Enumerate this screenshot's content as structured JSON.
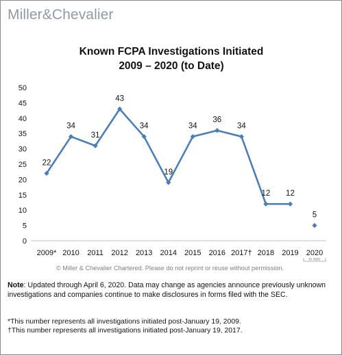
{
  "brand": {
    "part1": "Miller",
    "amp": "&",
    "part2": "Chevalier"
  },
  "chart_data": {
    "type": "line",
    "title_line1": "Known FCPA Investigations Initiated",
    "title_line2": "2009 – 2020 (to Date)",
    "categories": [
      "2009*",
      "2010",
      "2011",
      "2012",
      "2013",
      "2014",
      "2015",
      "2016",
      "2017†",
      "2018",
      "2019",
      "2020"
    ],
    "values": [
      22,
      34,
      31,
      43,
      34,
      19,
      34,
      36,
      34,
      12,
      12,
      5
    ],
    "data_labels": [
      "22",
      "34",
      "31",
      "43",
      "34",
      "19",
      "34",
      "36",
      "34",
      "12",
      "12",
      "5"
    ],
    "connected_until_index": 10,
    "ylim": [
      0,
      50
    ],
    "yticks": [
      0,
      5,
      10,
      15,
      20,
      25,
      30,
      35,
      40,
      45,
      50
    ],
    "grid": false,
    "line_color": "#4a7ebb",
    "x_annotation": "to date",
    "copyright": "© Miller & Chevalier Chartered. Please do not reprint or reuse without permission."
  },
  "notes": {
    "note_label": "Note",
    "note_text": ": Updated through April 6, 2020. Data may change as agencies announce previously unknown investigations and companies continue to make disclosures in forms filed with the SEC.",
    "footnote1": "*This number represents all investigations initiated post-January 19, 2009.",
    "footnote2": "†This number represents all investigations initiated post-January 19, 2017."
  }
}
